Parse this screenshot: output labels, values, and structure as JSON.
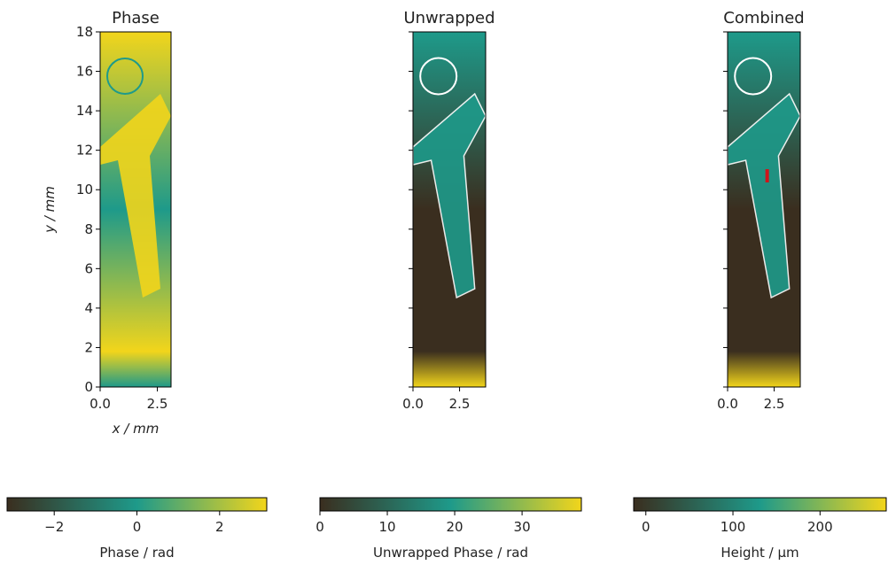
{
  "chart_data": [
    {
      "type": "heatmap",
      "title": "Phase",
      "xlabel": "x / mm",
      "ylabel": "y / mm",
      "xlim": [
        0,
        3.1
      ],
      "ylim": [
        0,
        18
      ],
      "xticks": [
        {
          "value": 0,
          "label": "0.0"
        },
        2.5
      ],
      "yticks": [
        0,
        2,
        4,
        6,
        8,
        10,
        12,
        14,
        16,
        18
      ],
      "ytick_labels": true,
      "colormap": [
        "#3a2e1f",
        "#1e9a8a",
        "#f2d51b"
      ],
      "colorbar": {
        "label": "Phase / rad",
        "lim": [
          -3.14,
          3.14
        ],
        "ticks": [
          {
            "value": -2,
            "label": "−2"
          },
          0,
          2
        ]
      }
    },
    {
      "type": "heatmap",
      "title": "Unwrapped",
      "xlim": [
        0,
        3.9
      ],
      "ylim": [
        0,
        18
      ],
      "xticks": [
        {
          "value": 0,
          "label": "0.0"
        },
        2.5
      ],
      "yticks": [
        0,
        2,
        4,
        6,
        8,
        10,
        12,
        14,
        16,
        18
      ],
      "ytick_labels": false,
      "colormap": [
        "#3a2e1f",
        "#1e9a8a",
        "#f2d51b"
      ],
      "colorbar": {
        "label": "Unwrapped Phase / rad",
        "lim": [
          0,
          38.8
        ],
        "ticks": [
          0,
          10,
          20,
          30
        ]
      }
    },
    {
      "type": "heatmap",
      "title": "Combined",
      "xlim": [
        0,
        3.9
      ],
      "ylim": [
        0,
        18
      ],
      "xticks": [
        {
          "value": 0,
          "label": "0.0"
        },
        2.5
      ],
      "yticks": [
        0,
        2,
        4,
        6,
        8,
        10,
        12,
        14,
        16,
        18
      ],
      "ytick_labels": false,
      "colormap": [
        "#3a2e1f",
        "#1e9a8a",
        "#f2d51b"
      ],
      "colorbar": {
        "label": "Height / µm",
        "lim": [
          -14,
          276
        ],
        "ticks": [
          0,
          100,
          200
        ]
      }
    }
  ]
}
